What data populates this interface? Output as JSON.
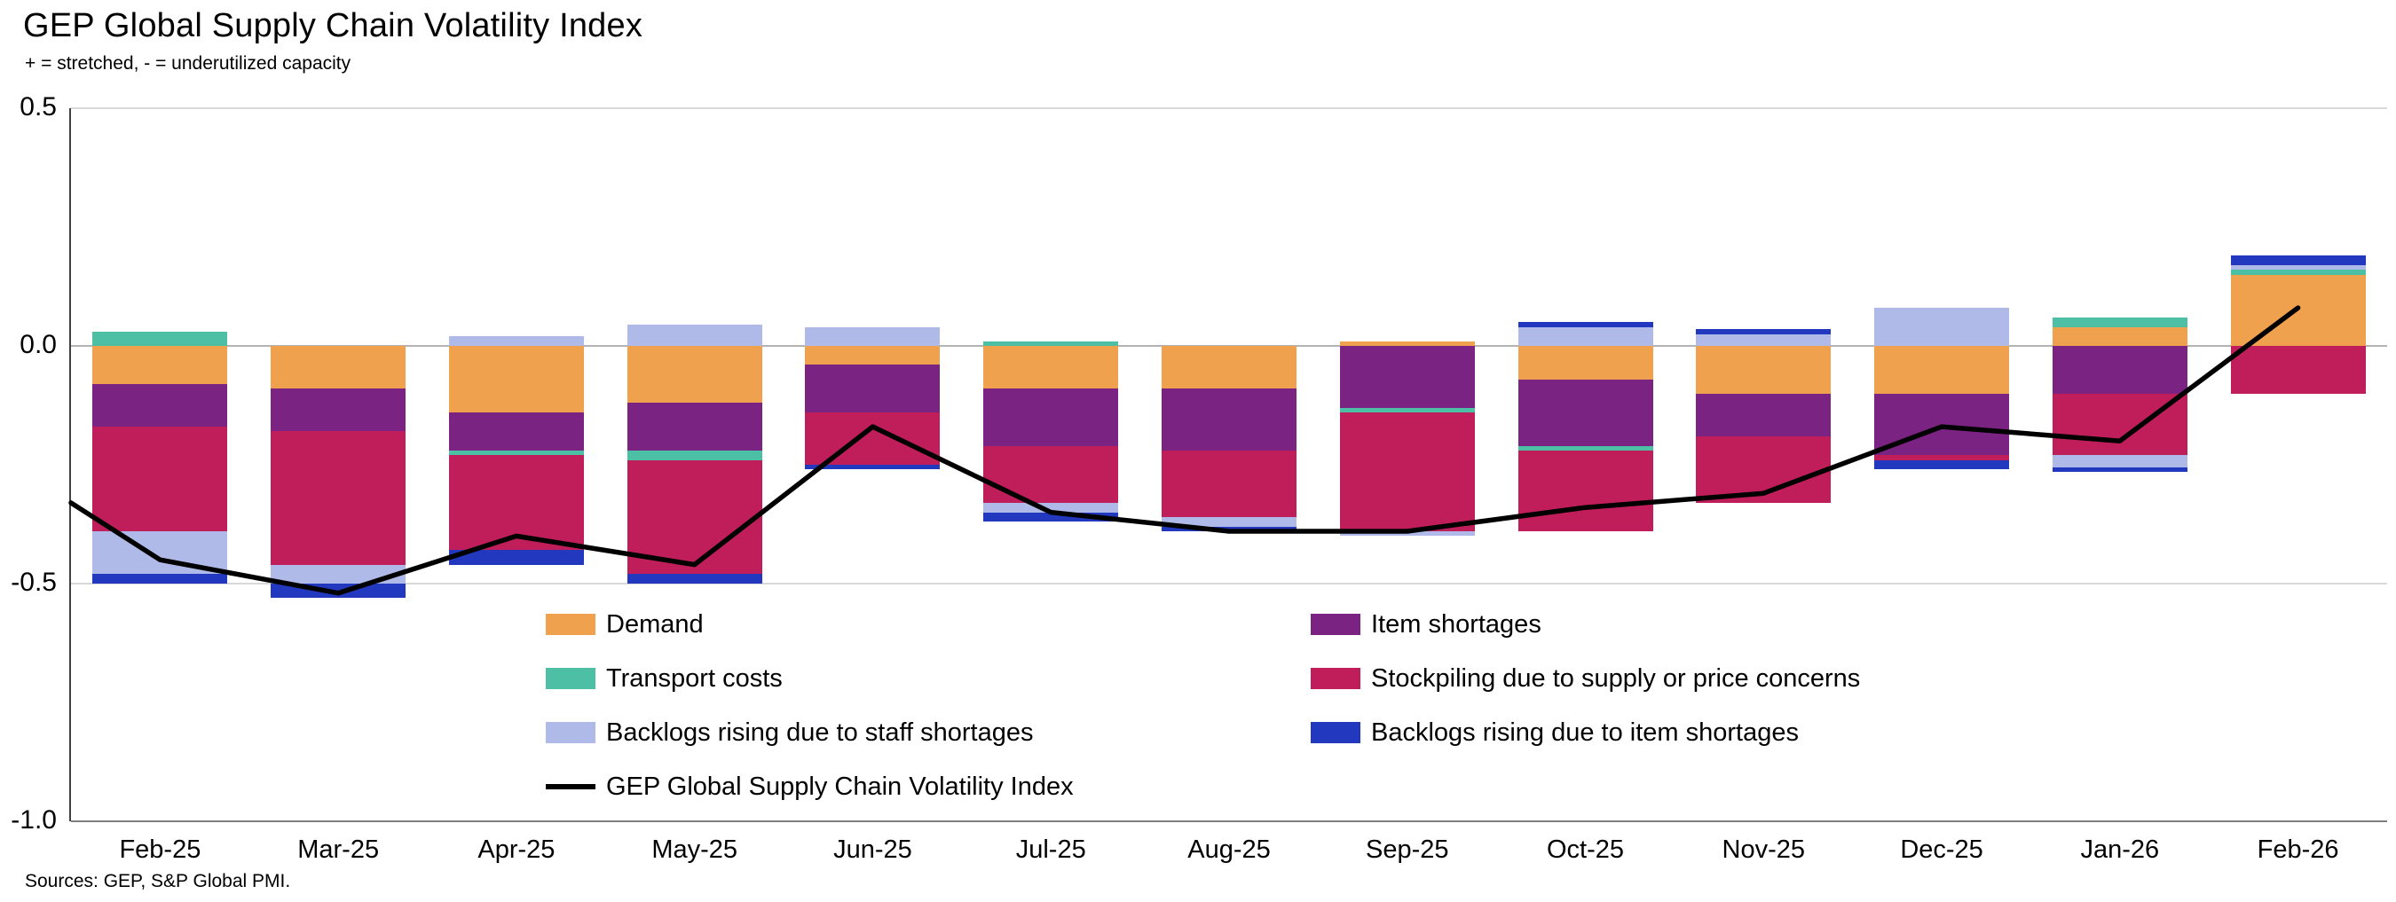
{
  "chart_data": {
    "type": "bar",
    "subtype": "stacked_bar_with_line_overlay",
    "title": "GEP Global Supply Chain Volatility Index",
    "subtitle": "+ = stretched, - = underutilized capacity",
    "source": "Sources: GEP, S&P Global PMI.",
    "xlabel": "",
    "ylabel": "",
    "ylim": [
      -1.0,
      0.5
    ],
    "y_ticks": [
      "0.5",
      "0.0",
      "-0.5",
      "-1.0"
    ],
    "grid": "horizontal",
    "legend_position": "bottom-inside-two-columns",
    "categories": [
      "Feb-25",
      "Mar-25",
      "Apr-25",
      "May-25",
      "Jun-25",
      "Jul-25",
      "Aug-25",
      "Sep-25",
      "Oct-25",
      "Nov-25",
      "Dec-25",
      "Jan-26",
      "Feb-26"
    ],
    "series": [
      {
        "name": "Demand",
        "color": "#F0A14D",
        "values": [
          -0.08,
          -0.09,
          -0.14,
          -0.12,
          -0.04,
          -0.09,
          -0.09,
          0.01,
          -0.07,
          -0.1,
          -0.1,
          0.04,
          0.15
        ]
      },
      {
        "name": "Item shortages",
        "color": "#7B2382",
        "values": [
          -0.09,
          -0.09,
          -0.08,
          -0.1,
          -0.1,
          -0.12,
          -0.13,
          -0.13,
          -0.14,
          -0.09,
          -0.13,
          -0.1,
          0.0
        ]
      },
      {
        "name": "Transport costs",
        "color": "#4CBFA4",
        "values": [
          0.03,
          0.0,
          -0.01,
          -0.02,
          0.0,
          0.01,
          0.0,
          -0.01,
          -0.01,
          0.0,
          0.0,
          0.02,
          0.01
        ]
      },
      {
        "name": "Stockpiling due to supply or price concerns",
        "color": "#C01E5B",
        "values": [
          -0.22,
          -0.28,
          -0.2,
          -0.24,
          -0.11,
          -0.12,
          -0.14,
          -0.25,
          -0.17,
          -0.14,
          -0.01,
          -0.13,
          -0.1
        ]
      },
      {
        "name": "Backlogs rising due to staff shortages",
        "color": "#AFBAE8",
        "values": [
          -0.09,
          -0.04,
          0.02,
          0.045,
          0.04,
          -0.02,
          -0.02,
          -0.01,
          0.04,
          0.025,
          0.08,
          -0.025,
          0.01
        ]
      },
      {
        "name": "Backlogs rising due to item shortages",
        "color": "#2238BE",
        "values": [
          -0.02,
          -0.03,
          -0.03,
          -0.02,
          -0.01,
          -0.02,
          -0.01,
          0.0,
          0.01,
          0.01,
          -0.02,
          -0.01,
          0.02
        ]
      }
    ],
    "line": {
      "name": "GEP Global Supply Chain Volatility Index",
      "color": "#000000",
      "edge_start": -0.33,
      "values": [
        -0.45,
        -0.52,
        -0.4,
        -0.46,
        -0.17,
        -0.35,
        -0.39,
        -0.39,
        -0.34,
        -0.31,
        -0.17,
        -0.2,
        0.08
      ]
    },
    "legend": [
      {
        "label": "Demand",
        "color": "#F0A14D",
        "type": "swatch"
      },
      {
        "label": "Item shortages",
        "color": "#7B2382",
        "type": "swatch"
      },
      {
        "label": "Transport costs",
        "color": "#4CBFA4",
        "type": "swatch"
      },
      {
        "label": "Stockpiling due to supply or price concerns",
        "color": "#C01E5B",
        "type": "swatch"
      },
      {
        "label": "Backlogs rising due to staff shortages",
        "color": "#AFBAE8",
        "type": "swatch"
      },
      {
        "label": "Backlogs rising due to item shortages",
        "color": "#2238BE",
        "type": "swatch"
      },
      {
        "label": "GEP Global Supply Chain Volatility Index",
        "color": "#000000",
        "type": "line"
      }
    ]
  }
}
